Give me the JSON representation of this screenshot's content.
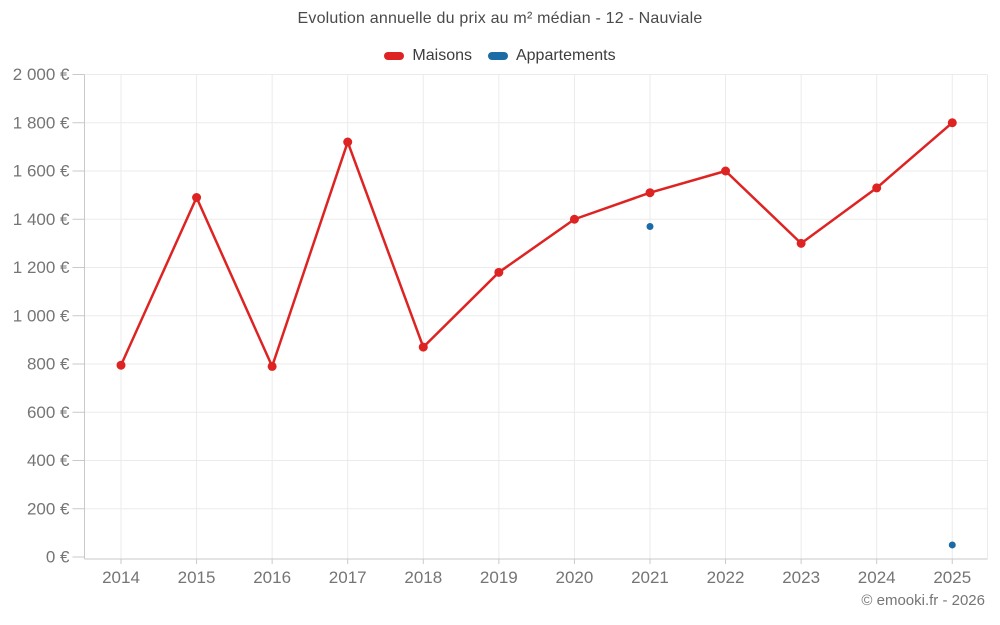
{
  "footer": {
    "copyright": "© emooki.fr - 2026"
  },
  "chart_data": {
    "type": "line",
    "title": "Evolution annuelle du prix au m² médian - 12 - Nauviale",
    "categories": [
      2014,
      2015,
      2016,
      2017,
      2018,
      2019,
      2020,
      2021,
      2022,
      2023,
      2024,
      2025
    ],
    "series": [
      {
        "name": "Maisons",
        "color": "#de2323",
        "marker_radius": 4.5,
        "line_width": 2.5,
        "values": [
          795,
          1490,
          790,
          1720,
          870,
          1180,
          1400,
          1510,
          1600,
          1300,
          1530,
          1800
        ]
      },
      {
        "name": "Appartements",
        "color": "#1b6ca6",
        "marker_radius": 3.5,
        "line_width": 2.5,
        "values": [
          null,
          null,
          null,
          null,
          null,
          null,
          null,
          1370,
          null,
          null,
          null,
          50
        ]
      }
    ],
    "xlabel": "",
    "ylabel": "",
    "ylim": [
      0,
      2000
    ],
    "ytick_step": 200,
    "ytick_labels": [
      "0 €",
      "200 €",
      "400 €",
      "600 €",
      "800 €",
      "1 000 €",
      "1 200 €",
      "1 400 €",
      "1 600 €",
      "1 800 €",
      "2 000 €"
    ],
    "grid": true,
    "legend_position": "top",
    "colors": {
      "grid": "#ebebeb",
      "axis": "#c9c9c9",
      "tick": "#c9c9c9",
      "tick_label": "#757575",
      "title": "#4a4a4a",
      "legend_text": "#3d3d3d"
    }
  }
}
